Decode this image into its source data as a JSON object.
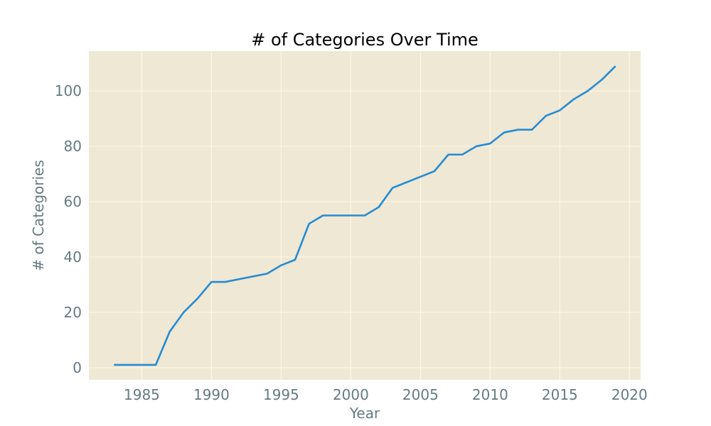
{
  "chart_data": {
    "type": "line",
    "title": "# of Categories Over Time",
    "xlabel": "Year",
    "ylabel": "# of Categories",
    "xlim": [
      1981.2,
      2020.8
    ],
    "ylim": [
      -4.4,
      114.4
    ],
    "x_ticks": [
      1985,
      1990,
      1995,
      2000,
      2005,
      2010,
      2015,
      2020
    ],
    "y_ticks": [
      0,
      20,
      40,
      60,
      80,
      100
    ],
    "grid": true,
    "legend": "none",
    "colors": {
      "plot_background": "#eee8d5",
      "grid": "#fdf6e3",
      "line": "#268bd2",
      "tick_text": "#657b83",
      "title_text": "#000000"
    },
    "series": [
      {
        "x": [
          1983,
          1984,
          1985,
          1986,
          1987,
          1988,
          1989,
          1990,
          1991,
          1992,
          1993,
          1994,
          1995,
          1996,
          1997,
          1998,
          1999,
          2000,
          2001,
          2002,
          2003,
          2004,
          2005,
          2006,
          2007,
          2008,
          2009,
          2010,
          2011,
          2012,
          2013,
          2014,
          2015,
          2016,
          2017,
          2018,
          2019
        ],
        "values": [
          1,
          1,
          1,
          1,
          13,
          20,
          25,
          31,
          31,
          32,
          33,
          34,
          37,
          39,
          52,
          55,
          55,
          55,
          55,
          58,
          65,
          67,
          69,
          71,
          77,
          77,
          80,
          81,
          85,
          86,
          86,
          91,
          93,
          97,
          100,
          104,
          109
        ]
      }
    ]
  }
}
